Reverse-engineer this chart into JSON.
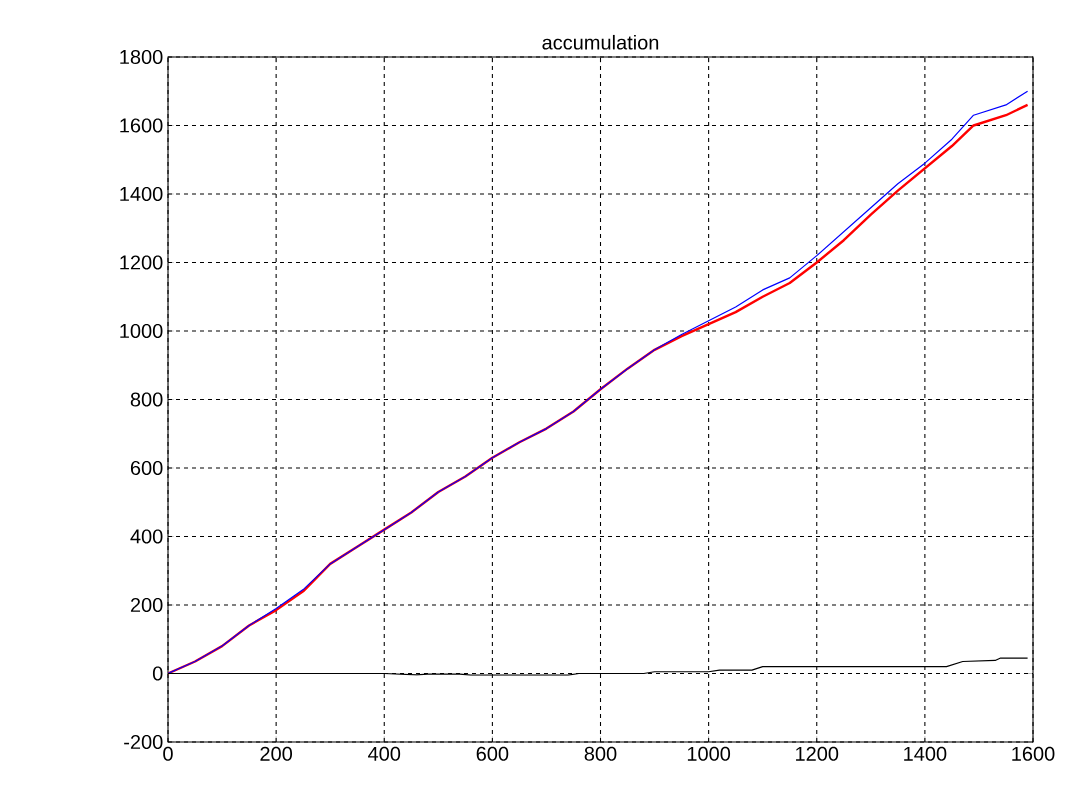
{
  "chart_data": {
    "type": "line",
    "title": "accumulation",
    "xlim": [
      0,
      1600
    ],
    "xticks": [
      0,
      200,
      400,
      600,
      800,
      1000,
      1200,
      1400,
      1600
    ],
    "ylim": [
      -200,
      1800
    ],
    "yticks": [
      -200,
      0,
      200,
      400,
      600,
      800,
      1000,
      1200,
      1400,
      1600,
      1800
    ],
    "grid": true,
    "marker": "none",
    "line_style": "solid",
    "series": [
      {
        "color": "#0000ff",
        "x": [
          0,
          50,
          100,
          150,
          200,
          250,
          300,
          350,
          400,
          450,
          500,
          550,
          600,
          650,
          700,
          750,
          800,
          850,
          900,
          950,
          1000,
          1050,
          1100,
          1150,
          1200,
          1250,
          1300,
          1350,
          1400,
          1450,
          1490,
          1550,
          1590
        ],
        "values": [
          0,
          35,
          80,
          140,
          190,
          245,
          320,
          370,
          420,
          470,
          530,
          575,
          630,
          675,
          715,
          765,
          830,
          890,
          945,
          990,
          1030,
          1070,
          1120,
          1155,
          1220,
          1290,
          1360,
          1430,
          1490,
          1560,
          1630,
          1660,
          1700
        ]
      },
      {
        "color": "#ff0000",
        "x": [
          0,
          50,
          100,
          150,
          200,
          250,
          300,
          350,
          400,
          450,
          500,
          550,
          600,
          650,
          700,
          750,
          800,
          850,
          900,
          950,
          1000,
          1050,
          1100,
          1150,
          1200,
          1250,
          1300,
          1350,
          1400,
          1450,
          1490,
          1550,
          1590
        ],
        "values": [
          0,
          35,
          80,
          140,
          185,
          240,
          320,
          370,
          420,
          470,
          530,
          575,
          630,
          675,
          715,
          765,
          830,
          890,
          945,
          985,
          1020,
          1055,
          1100,
          1140,
          1200,
          1265,
          1340,
          1410,
          1475,
          1540,
          1600,
          1630,
          1660
        ]
      },
      {
        "color": "#000000",
        "x": [
          0,
          400,
          460,
          480,
          540,
          560,
          740,
          760,
          880,
          900,
          1000,
          1020,
          1080,
          1100,
          1440,
          1470,
          1530,
          1540,
          1590
        ],
        "values": [
          0,
          0,
          -4,
          -2,
          -2,
          -5,
          -5,
          0,
          0,
          5,
          5,
          10,
          10,
          20,
          20,
          35,
          38,
          45,
          45
        ]
      }
    ]
  }
}
